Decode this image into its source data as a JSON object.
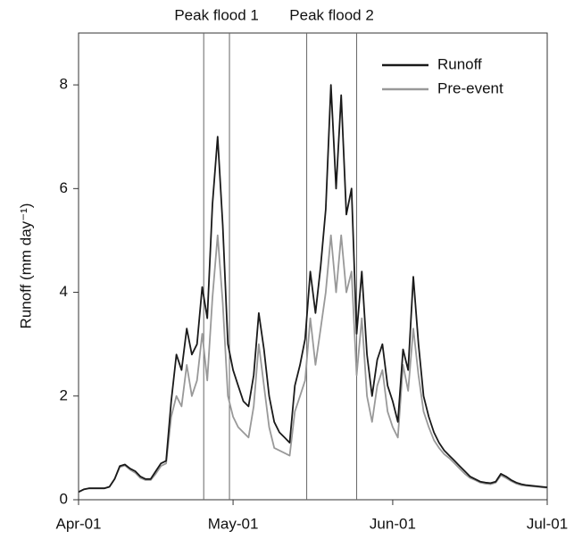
{
  "chart_data": {
    "type": "line",
    "ylabel": "Runoff (mm day⁻¹)",
    "x": [
      0,
      1,
      2,
      3,
      4,
      5,
      6,
      7,
      8,
      9,
      10,
      11,
      12,
      13,
      14,
      15,
      16,
      17,
      18,
      19,
      20,
      21,
      22,
      23,
      24,
      25,
      26,
      27,
      28,
      29,
      30,
      31,
      32,
      33,
      34,
      35,
      36,
      37,
      38,
      39,
      40,
      41,
      42,
      43,
      44,
      45,
      46,
      47,
      48,
      49,
      50,
      51,
      52,
      53,
      54,
      55,
      56,
      57,
      58,
      59,
      60,
      61,
      62,
      63,
      64,
      65,
      66,
      67,
      68,
      69,
      70,
      71,
      72,
      73,
      74,
      75,
      76,
      77,
      78,
      79,
      80,
      81,
      82,
      83,
      84,
      85,
      86,
      87,
      88,
      89,
      90,
      91
    ],
    "series": [
      {
        "name": "Runoff",
        "color": "#1a1a1a",
        "values": [
          0.15,
          0.2,
          0.22,
          0.22,
          0.22,
          0.22,
          0.25,
          0.4,
          0.65,
          0.68,
          0.6,
          0.55,
          0.45,
          0.4,
          0.4,
          0.55,
          0.7,
          0.75,
          1.9,
          2.8,
          2.5,
          3.3,
          2.8,
          3.0,
          4.1,
          3.5,
          5.7,
          7.0,
          5.3,
          3.0,
          2.5,
          2.2,
          1.9,
          1.8,
          2.4,
          3.6,
          2.9,
          2.0,
          1.5,
          1.3,
          1.2,
          1.1,
          2.2,
          2.6,
          3.1,
          4.4,
          3.6,
          4.5,
          5.6,
          8.0,
          6.0,
          7.8,
          5.5,
          6.0,
          3.2,
          4.4,
          2.8,
          2.0,
          2.7,
          3.0,
          2.2,
          1.9,
          1.5,
          2.9,
          2.5,
          4.3,
          3.0,
          2.0,
          1.6,
          1.3,
          1.1,
          0.95,
          0.85,
          0.75,
          0.65,
          0.55,
          0.45,
          0.4,
          0.35,
          0.33,
          0.32,
          0.35,
          0.5,
          0.45,
          0.38,
          0.33,
          0.3,
          0.28,
          0.27,
          0.26,
          0.25,
          0.24
        ]
      },
      {
        "name": "Pre-event",
        "color": "#999999",
        "values": [
          0.15,
          0.2,
          0.22,
          0.22,
          0.22,
          0.22,
          0.25,
          0.4,
          0.63,
          0.66,
          0.58,
          0.52,
          0.42,
          0.38,
          0.38,
          0.5,
          0.65,
          0.7,
          1.6,
          2.0,
          1.8,
          2.6,
          2.0,
          2.3,
          3.2,
          2.3,
          3.9,
          5.1,
          3.8,
          2.0,
          1.6,
          1.4,
          1.3,
          1.2,
          1.8,
          3.0,
          2.2,
          1.4,
          1.0,
          0.95,
          0.9,
          0.85,
          1.7,
          2.0,
          2.3,
          3.5,
          2.6,
          3.3,
          4.0,
          5.1,
          4.0,
          5.1,
          4.0,
          4.4,
          2.4,
          3.5,
          2.0,
          1.5,
          2.2,
          2.5,
          1.7,
          1.4,
          1.2,
          2.6,
          2.1,
          3.3,
          2.4,
          1.7,
          1.4,
          1.15,
          1.0,
          0.88,
          0.8,
          0.7,
          0.6,
          0.5,
          0.42,
          0.38,
          0.33,
          0.31,
          0.3,
          0.33,
          0.47,
          0.42,
          0.36,
          0.31,
          0.28,
          0.27,
          0.26,
          0.25,
          0.24,
          0.23
        ]
      }
    ],
    "xlim": [
      0,
      91
    ],
    "xticks": [
      {
        "value": 0,
        "label": "Apr-01"
      },
      {
        "value": 30,
        "label": "May-01"
      },
      {
        "value": 61,
        "label": "Jun-01"
      },
      {
        "value": 91,
        "label": "Jul-01"
      }
    ],
    "ylim": [
      0,
      9
    ],
    "yticks": [
      0,
      2,
      4,
      6,
      8
    ],
    "legend": "upper right",
    "annotations": [
      {
        "text": "Peak flood 1",
        "x": [
          24.3,
          29.3
        ]
      },
      {
        "text": "Peak flood 2",
        "x": [
          44.3,
          54
        ]
      }
    ]
  }
}
